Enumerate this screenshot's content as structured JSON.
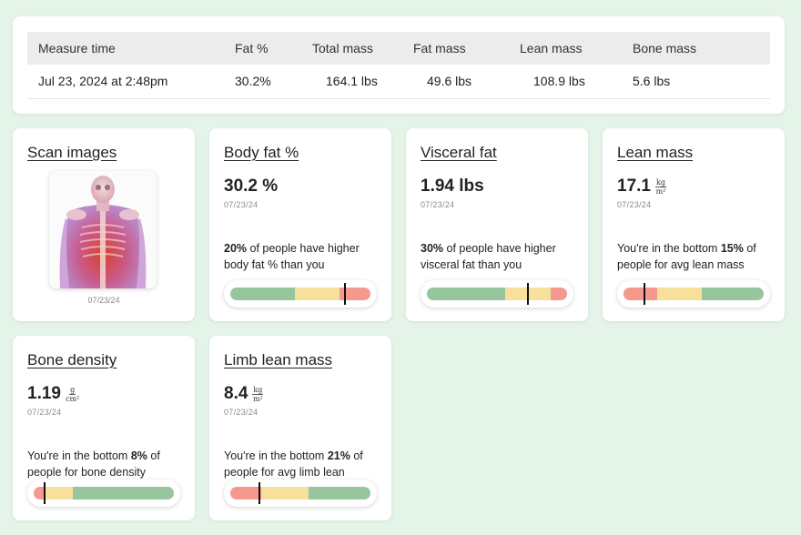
{
  "measure_table": {
    "headers": [
      "Measure time",
      "Fat %",
      "Total mass",
      "Fat mass",
      "Lean mass",
      "Bone mass"
    ],
    "rows": [
      [
        "Jul 23, 2024 at 2:48pm",
        "30.2%",
        "164.1 lbs",
        "49.6 lbs",
        "108.9 lbs",
        "5.6 lbs"
      ]
    ]
  },
  "scan": {
    "title": "Scan images",
    "date": "07/23/24",
    "image_icon": "body-scan-image"
  },
  "metrics": {
    "body_fat": {
      "title": "Body fat %",
      "value": "30.2 %",
      "date": "07/23/24",
      "percent": "20%",
      "desc_rest": " of people have higher body fat % than you",
      "segments": [
        {
          "color": "#96c59e",
          "frac": 0.46
        },
        {
          "color": "#f7e09c",
          "frac": 0.32
        },
        {
          "color": "#f5998f",
          "frac": 0.22
        }
      ],
      "marker_frac": 0.82
    },
    "visceral_fat": {
      "title": "Visceral fat",
      "value": "1.94 lbs",
      "date": "07/23/24",
      "percent": "30%",
      "desc_rest": " of people have higher visceral fat than you",
      "segments": [
        {
          "color": "#96c59e",
          "frac": 0.56
        },
        {
          "color": "#f7e09c",
          "frac": 0.32
        },
        {
          "color": "#f5998f",
          "frac": 0.12
        }
      ],
      "marker_frac": 0.72
    },
    "lean_mass": {
      "title": "Lean mass",
      "value": "17.1",
      "unit_num": "kg",
      "unit_den": "m²",
      "date": "07/23/24",
      "desc_pre": "You're in the bottom ",
      "percent": "15%",
      "desc_rest": " of people for avg lean mass",
      "segments": [
        {
          "color": "#f5998f",
          "frac": 0.24
        },
        {
          "color": "#f7e09c",
          "frac": 0.32
        },
        {
          "color": "#96c59e",
          "frac": 0.44
        }
      ],
      "marker_frac": 0.15
    },
    "bone_density": {
      "title": "Bone density",
      "value": "1.19",
      "unit_num": "g",
      "unit_den": "cm²",
      "date": "07/23/24",
      "desc_pre": "You're in the bottom ",
      "percent": "8%",
      "desc_rest": " of people for bone density",
      "segments": [
        {
          "color": "#f5998f",
          "frac": 0.08
        },
        {
          "color": "#f7e09c",
          "frac": 0.2
        },
        {
          "color": "#96c59e",
          "frac": 0.72
        }
      ],
      "marker_frac": 0.08
    },
    "limb_lean_mass": {
      "title": "Limb lean mass",
      "value": "8.4",
      "unit_num": "kg",
      "unit_den": "m²",
      "date": "07/23/24",
      "desc_pre": "You're in the bottom ",
      "percent": "21%",
      "desc_rest": " of people for avg limb lean",
      "segments": [
        {
          "color": "#f5998f",
          "frac": 0.22
        },
        {
          "color": "#f7e09c",
          "frac": 0.34
        },
        {
          "color": "#96c59e",
          "frac": 0.44
        }
      ],
      "marker_frac": 0.21
    }
  }
}
